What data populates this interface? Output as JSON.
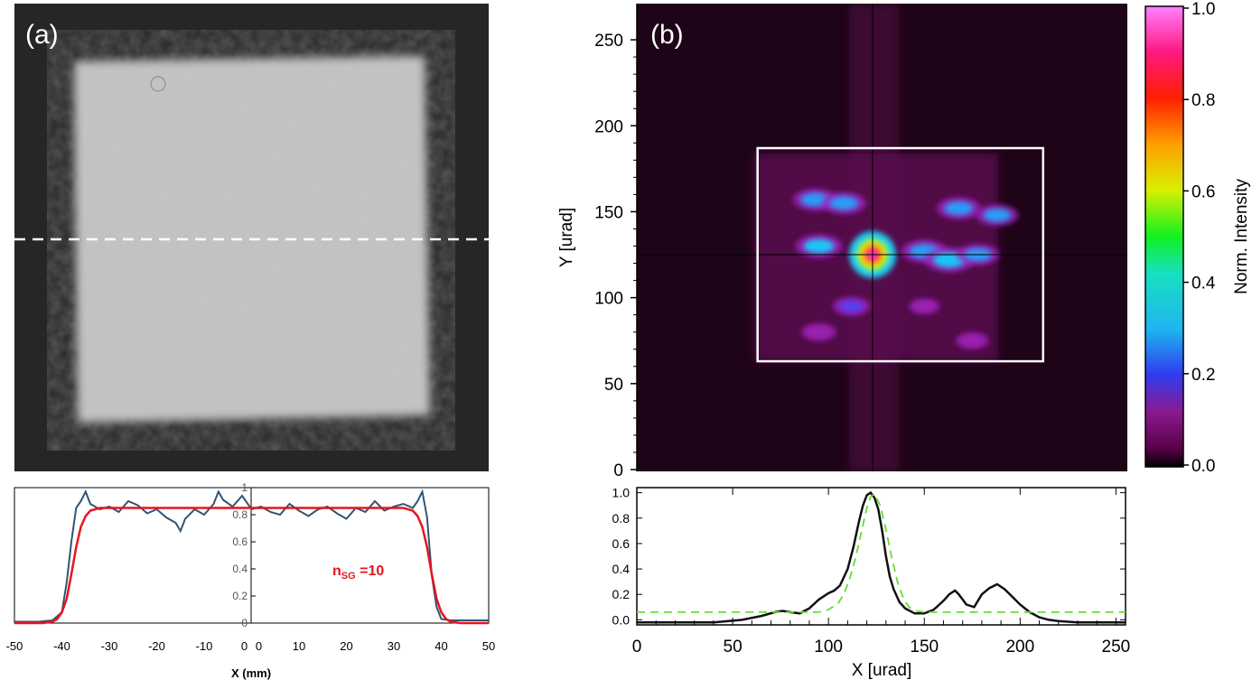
{
  "panels": {
    "a_label": "(a)",
    "b_label": "(b)"
  },
  "colorbar": {
    "label": "Norm. Intensity",
    "ticks": [
      "1.0",
      "0.8",
      "0.6",
      "0.4",
      "0.2",
      "0.0"
    ]
  },
  "chart_data": [
    {
      "id": "beam-image-a",
      "type": "heatmap",
      "description_free": true,
      "guide_line": "dashed-horizontal",
      "colors": {
        "background": "#262626",
        "beam": "#c4c4c4",
        "guide": "#ffffff"
      }
    },
    {
      "id": "profile-a",
      "type": "line",
      "xlabel": "X (mm)",
      "ylabel": "",
      "xlim": [
        -50,
        50
      ],
      "ylim": [
        0,
        1
      ],
      "x_ticks": [
        "-50",
        "-40",
        "-30",
        "-20",
        "-10",
        "0",
        "0",
        "10",
        "20",
        "30",
        "40",
        "50"
      ],
      "y_ticks": [
        "0",
        "0.2",
        "0.4",
        "0.6",
        "0.8",
        "1"
      ],
      "annotation": {
        "text_main": "n",
        "text_sub": "SG",
        "text_tail": " =10",
        "color": "#e8141c"
      },
      "series": [
        {
          "color": "#2f5575",
          "x": [
            -50,
            -45,
            -42,
            -40,
            -39,
            -38,
            -37,
            -36,
            -35,
            -34,
            -32,
            -30,
            -28,
            -26,
            -24,
            -22,
            -20,
            -18,
            -16,
            -15,
            -14,
            -12,
            -10,
            -8,
            -7,
            -6,
            -4,
            -2,
            0,
            2,
            4,
            6,
            8,
            10,
            12,
            14,
            16,
            18,
            20,
            22,
            24,
            26,
            28,
            30,
            32,
            34,
            35,
            36,
            37,
            38,
            39,
            40,
            42,
            45,
            50
          ],
          "y": [
            0.01,
            0.01,
            0.02,
            0.08,
            0.3,
            0.6,
            0.85,
            0.9,
            0.97,
            0.88,
            0.84,
            0.86,
            0.82,
            0.9,
            0.87,
            0.81,
            0.84,
            0.78,
            0.74,
            0.68,
            0.77,
            0.84,
            0.8,
            0.88,
            0.97,
            0.91,
            0.86,
            0.94,
            0.84,
            0.86,
            0.82,
            0.8,
            0.88,
            0.83,
            0.79,
            0.84,
            0.86,
            0.81,
            0.77,
            0.85,
            0.82,
            0.9,
            0.83,
            0.86,
            0.88,
            0.85,
            0.9,
            0.97,
            0.78,
            0.35,
            0.12,
            0.03,
            0.02,
            0.02,
            0.02
          ]
        },
        {
          "color": "#e8141c",
          "x": [
            -50,
            -44,
            -42,
            -41,
            -40,
            -39,
            -38,
            -37,
            -36,
            -35,
            -34,
            -32,
            -30,
            30,
            32,
            34,
            35,
            36,
            37,
            38,
            39,
            40,
            41,
            42,
            44,
            50
          ],
          "y": [
            0,
            0,
            0.01,
            0.03,
            0.08,
            0.18,
            0.36,
            0.56,
            0.71,
            0.79,
            0.83,
            0.85,
            0.85,
            0.85,
            0.85,
            0.83,
            0.79,
            0.71,
            0.56,
            0.36,
            0.18,
            0.08,
            0.03,
            0.01,
            0,
            0
          ]
        }
      ]
    },
    {
      "id": "far-field-b",
      "type": "heatmap",
      "ylabel": "Y [urad]",
      "ylim": [
        0,
        270
      ],
      "y_ticks": [
        "0",
        "50",
        "100",
        "150",
        "200",
        "250"
      ],
      "box": {
        "x": [
          63,
          212
        ],
        "y": [
          63,
          187
        ]
      },
      "crosshair": {
        "x": 123,
        "y": 125
      },
      "spots": [
        {
          "x": 123,
          "y": 125,
          "i": 1.0
        },
        {
          "x": 95,
          "y": 130,
          "i": 0.25
        },
        {
          "x": 93,
          "y": 157,
          "i": 0.22
        },
        {
          "x": 108,
          "y": 155,
          "i": 0.22
        },
        {
          "x": 150,
          "y": 127,
          "i": 0.24
        },
        {
          "x": 163,
          "y": 122,
          "i": 0.28
        },
        {
          "x": 178,
          "y": 125,
          "i": 0.2
        },
        {
          "x": 168,
          "y": 152,
          "i": 0.22
        },
        {
          "x": 188,
          "y": 148,
          "i": 0.2
        },
        {
          "x": 112,
          "y": 95,
          "i": 0.15
        },
        {
          "x": 95,
          "y": 80,
          "i": 0.12
        },
        {
          "x": 175,
          "y": 75,
          "i": 0.1
        },
        {
          "x": 150,
          "y": 95,
          "i": 0.08
        }
      ]
    },
    {
      "id": "profile-b",
      "type": "line",
      "xlabel": "X [urad]",
      "ylabel": "",
      "xlim": [
        0,
        255
      ],
      "ylim": [
        -0.04,
        1.04
      ],
      "x_ticks": [
        "0",
        "50",
        "100",
        "150",
        "200",
        "250"
      ],
      "y_ticks": [
        "0.0",
        "0.2",
        "0.4",
        "0.6",
        "0.8",
        "1.0"
      ],
      "series": [
        {
          "color": "#111111",
          "x": [
            0,
            40,
            55,
            65,
            72,
            76,
            80,
            85,
            90,
            95,
            100,
            103,
            106,
            110,
            113,
            116,
            118,
            120,
            122,
            124,
            126,
            128,
            130,
            132,
            134,
            137,
            140,
            145,
            150,
            155,
            160,
            163,
            166,
            168,
            172,
            176,
            180,
            184,
            188,
            192,
            196,
            200,
            205,
            210,
            215,
            220,
            230,
            255
          ],
          "y": [
            -0.02,
            -0.02,
            0.0,
            0.03,
            0.06,
            0.07,
            0.06,
            0.05,
            0.09,
            0.16,
            0.21,
            0.23,
            0.27,
            0.4,
            0.57,
            0.78,
            0.9,
            0.98,
            1.0,
            0.96,
            0.87,
            0.7,
            0.5,
            0.34,
            0.24,
            0.14,
            0.09,
            0.05,
            0.05,
            0.08,
            0.15,
            0.2,
            0.23,
            0.2,
            0.12,
            0.1,
            0.2,
            0.25,
            0.28,
            0.24,
            0.18,
            0.12,
            0.06,
            0.02,
            0.0,
            -0.01,
            -0.02,
            -0.02
          ]
        },
        {
          "color": "#66dd33",
          "dashed": true,
          "x": [
            0,
            95,
            100,
            105,
            108,
            111,
            114,
            117,
            120,
            122,
            124,
            127,
            130,
            133,
            136,
            139,
            142,
            146,
            150,
            255
          ],
          "y": [
            0.06,
            0.06,
            0.08,
            0.13,
            0.2,
            0.32,
            0.48,
            0.68,
            0.88,
            0.97,
            0.99,
            0.9,
            0.71,
            0.49,
            0.3,
            0.17,
            0.1,
            0.07,
            0.06,
            0.06
          ]
        }
      ]
    }
  ]
}
